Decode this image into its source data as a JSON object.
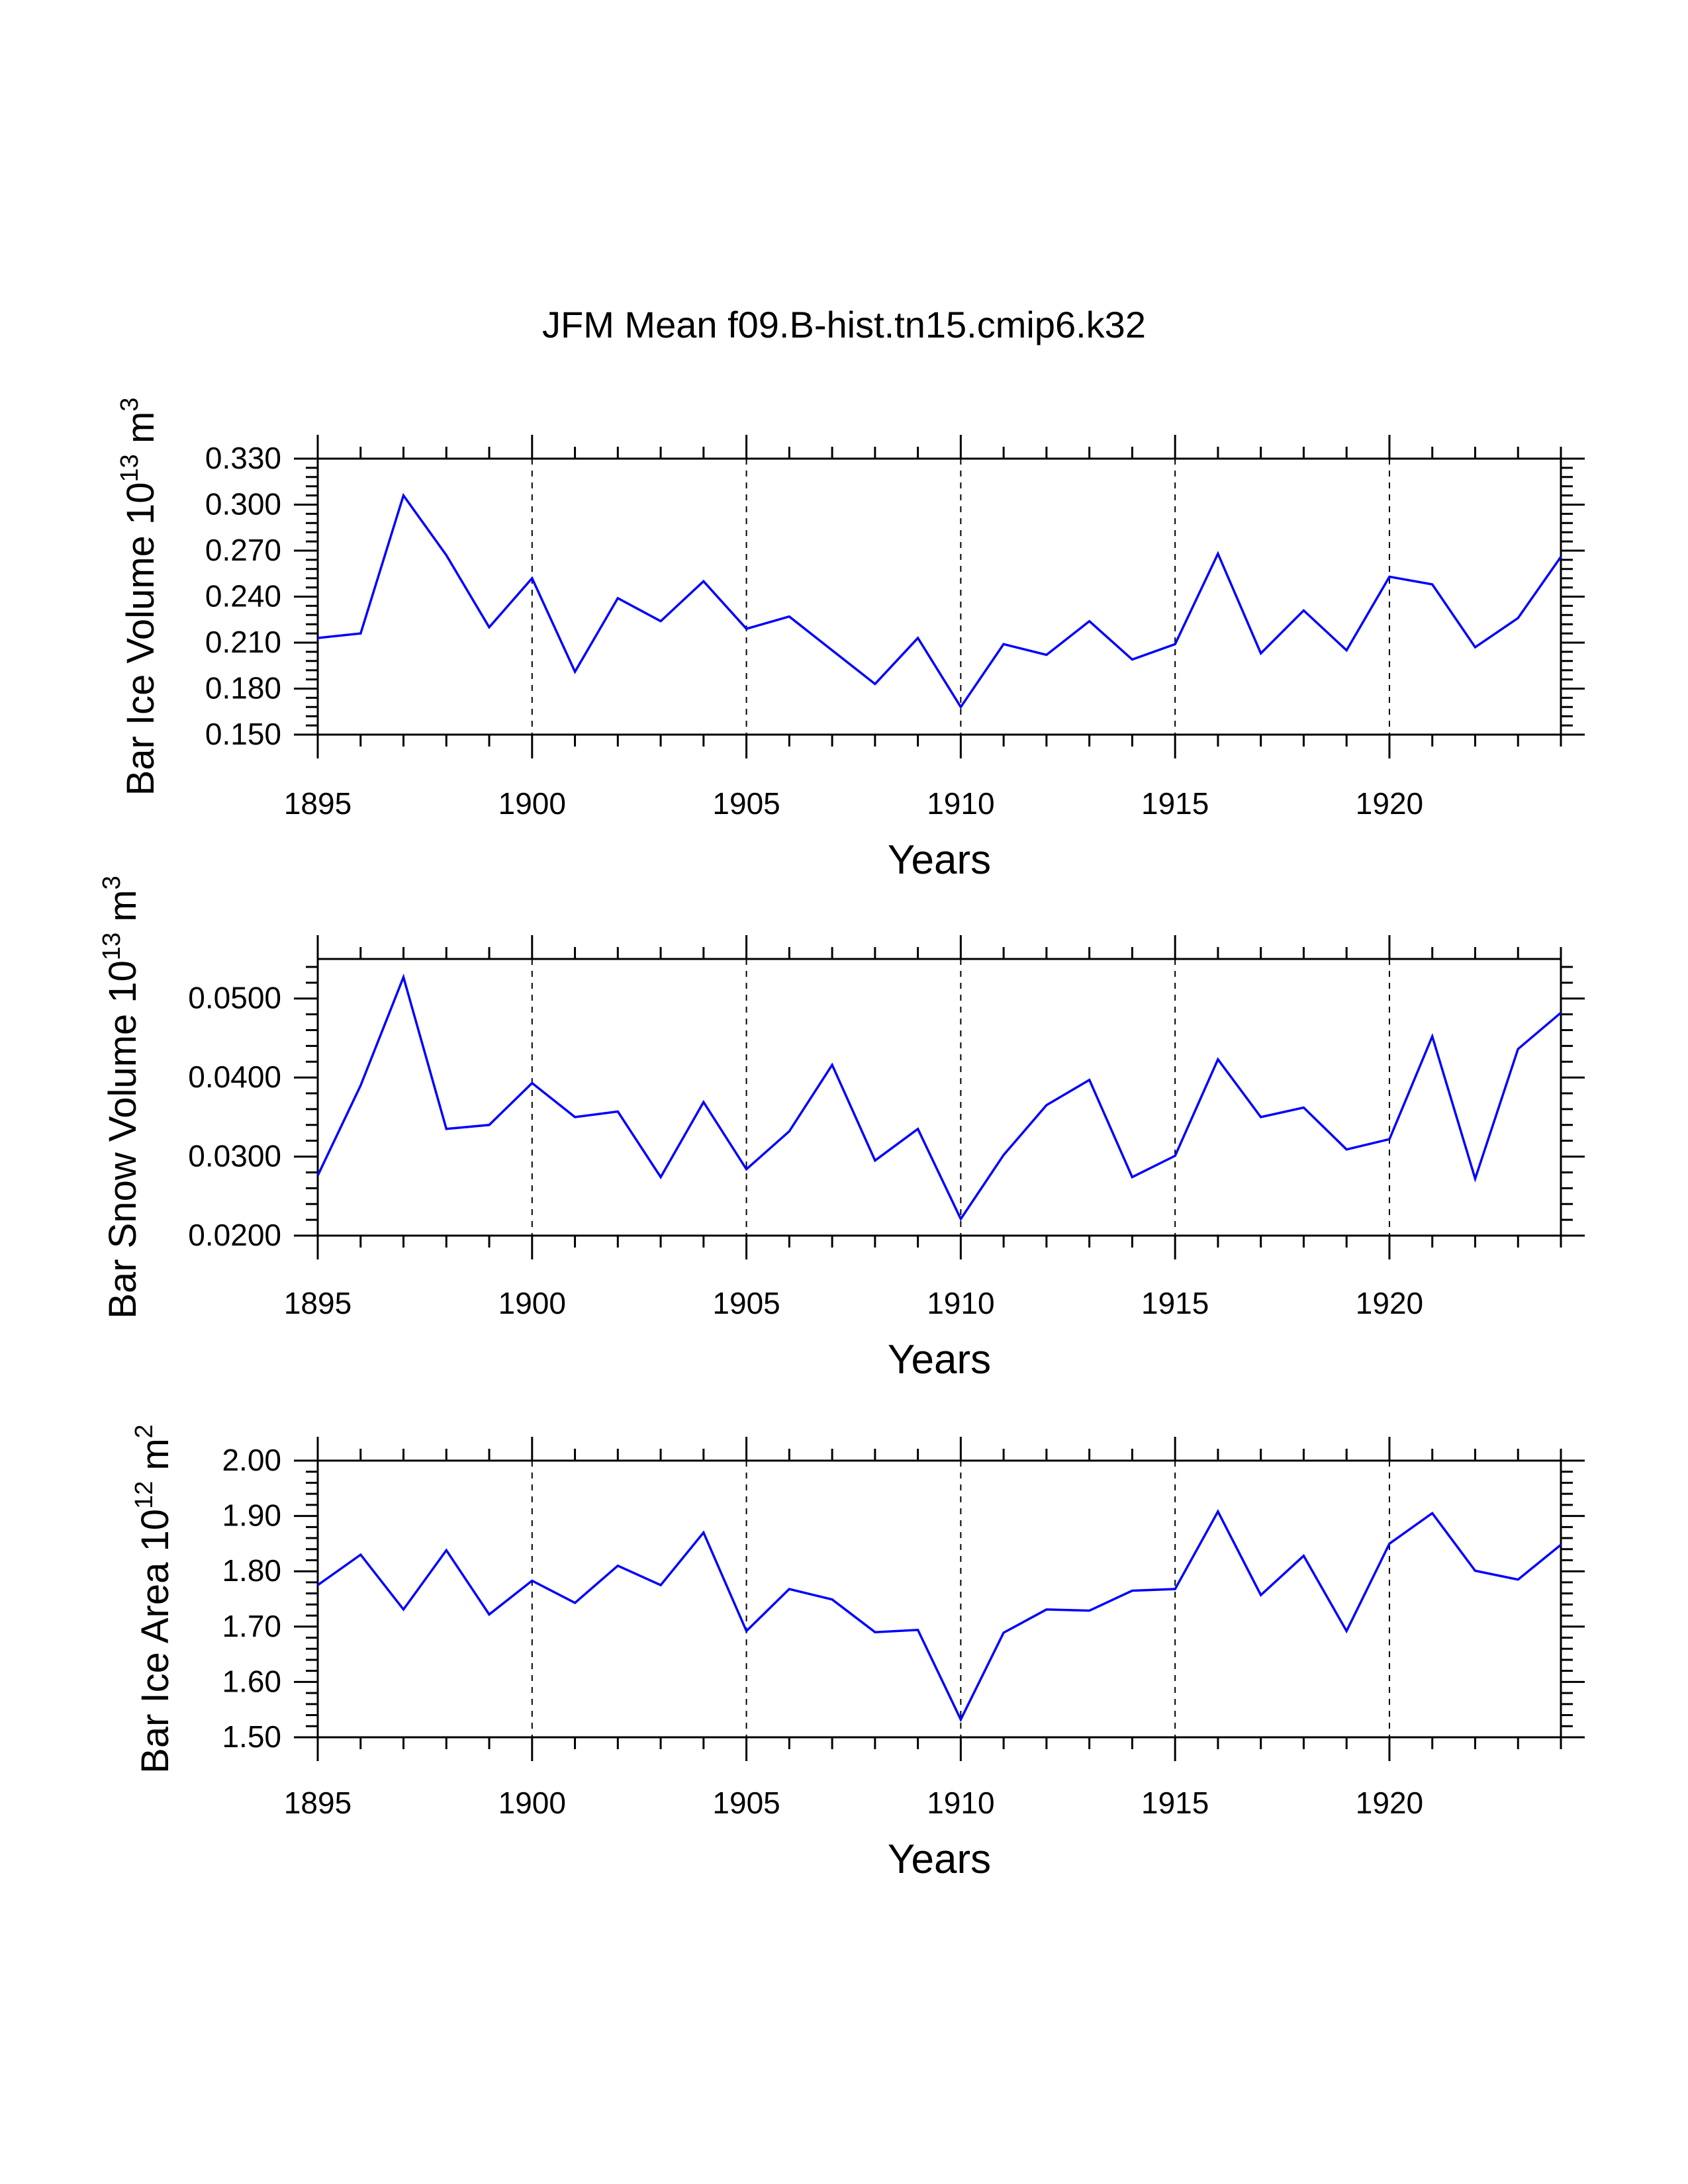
{
  "title": "JFM Mean f09.B-hist.tn15.cmip6.k32",
  "colors": {
    "line": "#0000ff",
    "axis": "#000000",
    "grid": "#000000",
    "background": "#ffffff"
  },
  "chart_data": [
    {
      "type": "line",
      "ylabel_main": "Bar Ice Volume 10",
      "ylabel_exp": "13",
      "ylabel_tail": " m",
      "ylabel_unit_exp": "3",
      "xlabel": "Years",
      "xlim": [
        1895,
        1924
      ],
      "ylim": [
        0.15,
        0.33
      ],
      "xticks": [
        "1895",
        "1900",
        "1905",
        "1910",
        "1915",
        "1920"
      ],
      "yticks": [
        "0.150",
        "0.180",
        "0.210",
        "0.240",
        "0.270",
        "0.300",
        "0.330"
      ],
      "x": [
        1895,
        1896,
        1897,
        1898,
        1899,
        1900,
        1901,
        1902,
        1903,
        1904,
        1905,
        1906,
        1907,
        1908,
        1909,
        1910,
        1911,
        1912,
        1913,
        1914,
        1915,
        1916,
        1917,
        1918,
        1919,
        1920,
        1921,
        1922,
        1923,
        1924
      ],
      "values": [
        0.213,
        0.216,
        0.306,
        0.267,
        0.22,
        0.252,
        0.191,
        0.239,
        0.224,
        0.25,
        0.219,
        0.227,
        0.205,
        0.183,
        0.213,
        0.168,
        0.209,
        0.202,
        0.224,
        0.199,
        0.209,
        0.268,
        0.203,
        0.231,
        0.205,
        0.253,
        0.248,
        0.207,
        0.226,
        0.266
      ]
    },
    {
      "type": "line",
      "ylabel_main": "Bar Snow Volume 10",
      "ylabel_exp": "13",
      "ylabel_tail": " m",
      "ylabel_unit_exp": "3",
      "xlabel": "Years",
      "xlim": [
        1895,
        1924
      ],
      "ylim": [
        0.02,
        0.055
      ],
      "xticks": [
        "1895",
        "1900",
        "1905",
        "1910",
        "1915",
        "1920"
      ],
      "yticks": [
        "0.0200",
        "0.0300",
        "0.0400",
        "0.0500"
      ],
      "x": [
        1895,
        1896,
        1897,
        1898,
        1899,
        1900,
        1901,
        1902,
        1903,
        1904,
        1905,
        1906,
        1907,
        1908,
        1909,
        1910,
        1911,
        1912,
        1913,
        1914,
        1915,
        1916,
        1917,
        1918,
        1919,
        1920,
        1921,
        1922,
        1923,
        1924
      ],
      "values": [
        0.0276,
        0.039,
        0.0527,
        0.0335,
        0.034,
        0.0393,
        0.035,
        0.0357,
        0.0274,
        0.0369,
        0.0284,
        0.0332,
        0.0416,
        0.0295,
        0.0335,
        0.0221,
        0.0302,
        0.0365,
        0.0397,
        0.0274,
        0.0301,
        0.0423,
        0.035,
        0.0362,
        0.0309,
        0.0322,
        0.0452,
        0.0272,
        0.0436,
        0.0482
      ]
    },
    {
      "type": "line",
      "ylabel_main": "Bar Ice Area 10",
      "ylabel_exp": "12",
      "ylabel_tail": " m",
      "ylabel_unit_exp": "2",
      "xlabel": "Years",
      "xlim": [
        1895,
        1924
      ],
      "ylim": [
        1.5,
        2.0
      ],
      "xticks": [
        "1895",
        "1900",
        "1905",
        "1910",
        "1915",
        "1920"
      ],
      "yticks": [
        "1.50",
        "1.60",
        "1.70",
        "1.80",
        "1.90",
        "2.00"
      ],
      "x": [
        1895,
        1896,
        1897,
        1898,
        1899,
        1900,
        1901,
        1902,
        1903,
        1904,
        1905,
        1906,
        1907,
        1908,
        1909,
        1910,
        1911,
        1912,
        1913,
        1914,
        1915,
        1916,
        1917,
        1918,
        1919,
        1920,
        1921,
        1922,
        1923,
        1924
      ],
      "values": [
        1.775,
        1.83,
        1.731,
        1.838,
        1.722,
        1.783,
        1.743,
        1.81,
        1.775,
        1.87,
        1.692,
        1.768,
        1.749,
        1.69,
        1.694,
        1.532,
        1.689,
        1.731,
        1.729,
        1.765,
        1.768,
        1.908,
        1.757,
        1.828,
        1.692,
        1.85,
        1.905,
        1.801,
        1.785,
        1.848
      ]
    }
  ]
}
